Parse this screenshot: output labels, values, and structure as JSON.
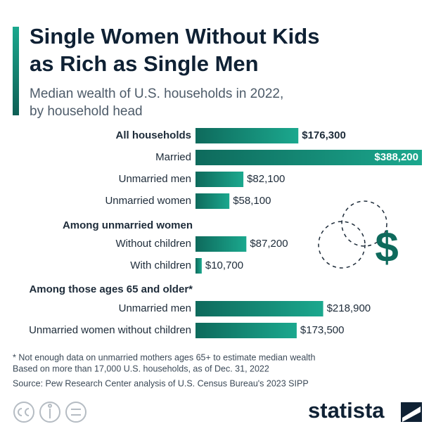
{
  "chart_data": {
    "type": "bar",
    "title": [
      "Single Women Without Kids",
      "as Rich as Single Men"
    ],
    "subtitle": [
      "Median wealth of U.S. households in 2022,",
      "by household head"
    ],
    "categories": [
      "All households",
      "Married",
      "Unmarried men",
      "Unmarried women",
      "Among unmarried women",
      "Without children",
      "With children",
      "Among those ages 65 and older*",
      "Unmarried men",
      "Unmarried women without children"
    ],
    "bold": [
      true,
      false,
      false,
      false,
      true,
      false,
      false,
      true,
      false,
      false
    ],
    "values": [
      176300,
      388200,
      82100,
      58100,
      null,
      87200,
      10700,
      null,
      218900,
      173500
    ],
    "value_labels": [
      "$176,300",
      "$388,200",
      "$82,100",
      "$58,100",
      null,
      "$87,200",
      "$10,700",
      null,
      "$218,900",
      "$173,500"
    ],
    "color": [
      "#0e6a5c",
      "#1ba88e"
    ],
    "notes": [
      "* Not enough data on unmarried mothers ages 65+ to estimate median wealth",
      "Based on more than 17,000 U.S. households, as of Dec. 31, 2022",
      "Source: Pew Research Center analysis of U.S. Census Bureau's 2023 SIPP"
    ],
    "brand": "statista"
  }
}
